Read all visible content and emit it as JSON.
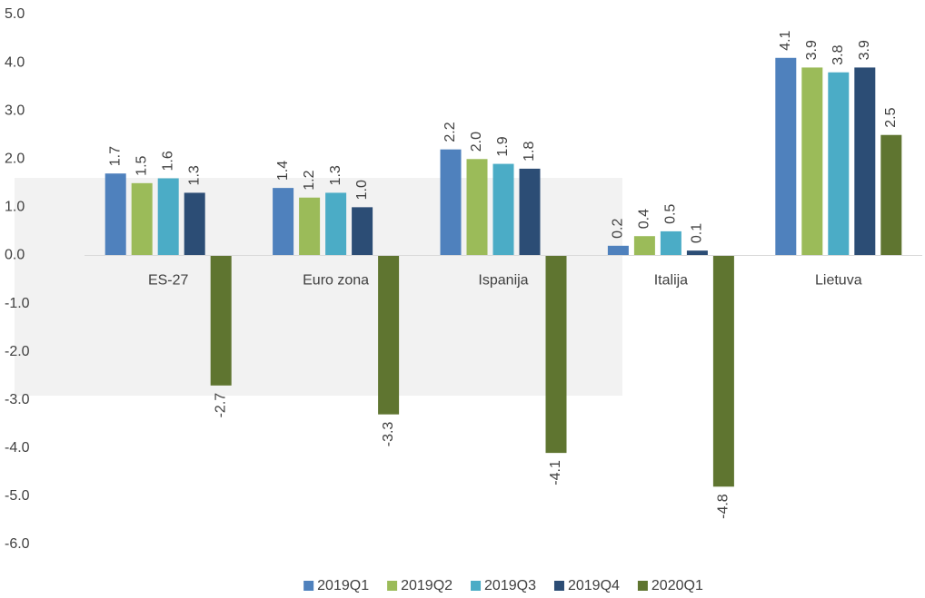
{
  "chart_data": {
    "type": "bar",
    "categories": [
      "ES-27",
      "Euro zona",
      "Ispanija",
      "Italija",
      "Lietuva"
    ],
    "series": [
      {
        "name": "2019Q1",
        "color": "#4f81bd",
        "values": [
          1.7,
          1.4,
          2.2,
          0.2,
          4.1
        ],
        "value_labels": [
          "1.7",
          "1.4",
          "2.2",
          "0.2",
          "4.1"
        ]
      },
      {
        "name": "2019Q2",
        "color": "#9bbb59",
        "values": [
          1.5,
          1.2,
          2.0,
          0.4,
          3.9
        ],
        "value_labels": [
          "1.5",
          "1.2",
          "2.0",
          "0.4",
          "3.9"
        ]
      },
      {
        "name": "2019Q3",
        "color": "#4bacc6",
        "values": [
          1.6,
          1.3,
          1.9,
          0.5,
          3.8
        ],
        "value_labels": [
          "1.6",
          "1.3",
          "1.9",
          "0.5",
          "3.8"
        ]
      },
      {
        "name": "2019Q4",
        "color": "#2c4d75",
        "values": [
          1.3,
          1.0,
          1.8,
          0.1,
          3.9
        ],
        "value_labels": [
          "1.3",
          "1.0",
          "1.8",
          "0.1",
          "3.9"
        ]
      },
      {
        "name": "2020Q1",
        "color": "#5f7530",
        "values": [
          -2.7,
          -3.3,
          -4.1,
          -4.8,
          2.5
        ],
        "value_labels": [
          "-2.7",
          "-3.3",
          "-4.1",
          "-4.8",
          "2.5"
        ]
      }
    ],
    "ylim": [
      -6,
      5
    ],
    "yticks": [
      {
        "value": 5,
        "label": "5.0"
      },
      {
        "value": 4,
        "label": "4.0"
      },
      {
        "value": 3,
        "label": "3.0"
      },
      {
        "value": 2,
        "label": "2.0"
      },
      {
        "value": 1,
        "label": "1.0"
      },
      {
        "value": 0,
        "label": "0.0"
      },
      {
        "value": -1,
        "label": "-1.0"
      },
      {
        "value": -2,
        "label": "-2.0"
      },
      {
        "value": -3,
        "label": "-3.0"
      },
      {
        "value": -4,
        "label": "-4.0"
      },
      {
        "value": -5,
        "label": "-5.0"
      },
      {
        "value": -6,
        "label": "-6.0"
      }
    ],
    "grid": false,
    "legend": "bottom"
  }
}
